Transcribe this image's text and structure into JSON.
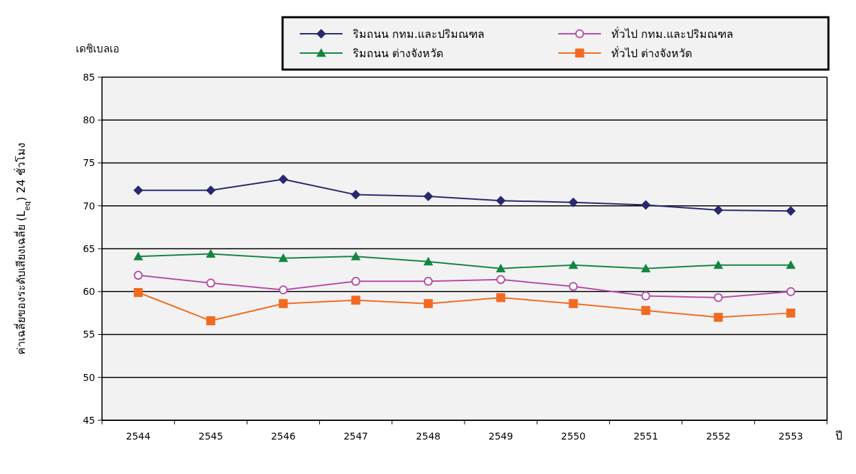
{
  "chart_data": {
    "type": "line",
    "ylabel": "ค่าเฉลี่ยของระดับเสียงเฉลี่ย (L$_{eq}$) 24 ชั่วโมง",
    "xlabel": "ปี",
    "annotations": [
      "เดซิเบลเอ"
    ],
    "categories": [
      "2544",
      "2545",
      "2546",
      "2547",
      "2548",
      "2549",
      "2550",
      "2551",
      "2552",
      "2553"
    ],
    "ylim": [
      45,
      85
    ],
    "yticks": [
      45,
      50,
      55,
      60,
      65,
      70,
      75,
      80,
      85
    ],
    "grid": "y",
    "legend": "top right",
    "series": [
      {
        "name": "ริมถนน กทม.และปริมณฑล",
        "color": "#27286f",
        "marker": "diamond",
        "values": [
          71.8,
          71.8,
          73.1,
          71.3,
          71.1,
          70.6,
          70.4,
          70.1,
          69.5,
          69.4
        ]
      },
      {
        "name": "ริมถนน ต่างจังหวัด",
        "color": "#138540",
        "marker": "triangle",
        "values": [
          64.1,
          64.4,
          63.9,
          64.1,
          63.5,
          62.7,
          63.1,
          62.7,
          63.1,
          63.1
        ]
      },
      {
        "name": "ทั่วไป กทม.และปริมณฑล",
        "color": "#b44ca8",
        "marker": "circle",
        "values": [
          61.9,
          61.0,
          60.2,
          61.2,
          61.2,
          61.4,
          60.6,
          59.5,
          59.3,
          60.0
        ]
      },
      {
        "name": "ทั่วไป ต่างจังหวัด",
        "color": "#f26a22",
        "marker": "square",
        "values": [
          59.9,
          56.6,
          58.6,
          59.0,
          58.6,
          59.3,
          58.6,
          57.8,
          57.0,
          57.5
        ]
      }
    ]
  }
}
